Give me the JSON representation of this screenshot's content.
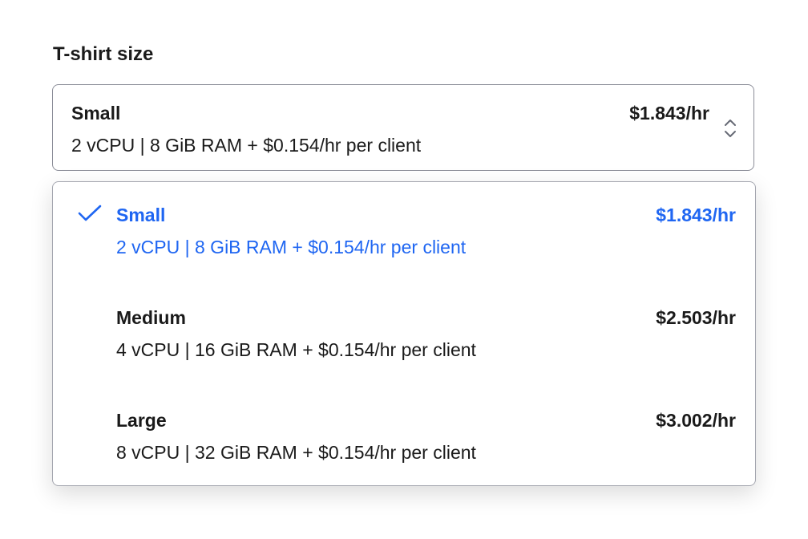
{
  "field_label": "T-shirt size",
  "selected": {
    "title": "Small",
    "price": "$1.843/hr",
    "specs": "2 vCPU | 8 GiB RAM + $0.154/hr per client"
  },
  "accent_color": "#1f66f2",
  "options": [
    {
      "title": "Small",
      "price": "$1.843/hr",
      "specs": "2 vCPU | 8 GiB RAM + $0.154/hr per client",
      "selected": true
    },
    {
      "title": "Medium",
      "price": "$2.503/hr",
      "specs": "4 vCPU | 16 GiB RAM + $0.154/hr per client",
      "selected": false
    },
    {
      "title": "Large",
      "price": "$3.002/hr",
      "specs": "8 vCPU | 32 GiB RAM + $0.154/hr per client",
      "selected": false
    }
  ]
}
